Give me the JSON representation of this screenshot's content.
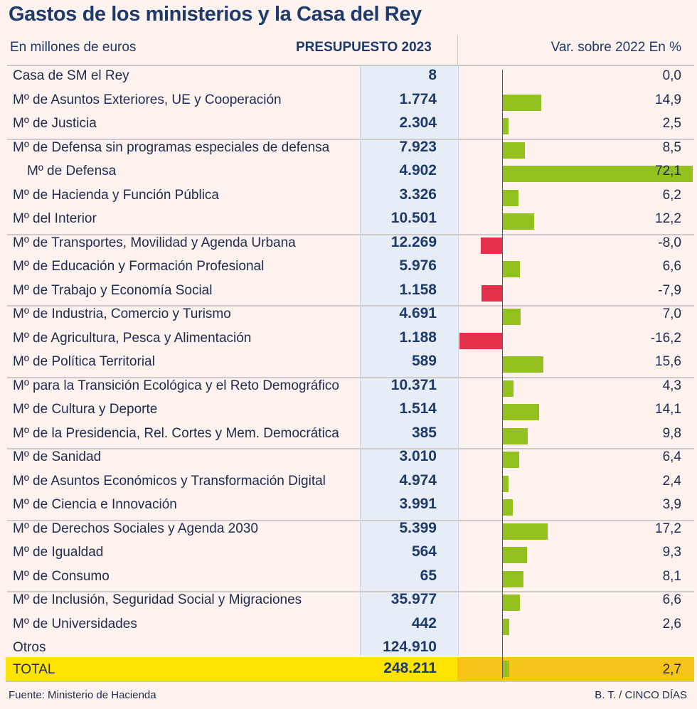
{
  "title": "Gastos de los ministerios y la Casa del Rey",
  "header": {
    "unit_label": "En millones de euros",
    "budget_label": "PRESUPUESTO 2023",
    "variation_label": "Var. sobre 2022 En %"
  },
  "chart_data": {
    "type": "bar",
    "title": "Gastos de los ministerios y la Casa del Rey",
    "xlabel": "Var. sobre 2022 En %",
    "ylabel": "",
    "xlim": [
      -20,
      45
    ],
    "rows": [
      {
        "label": "Casa de SM el Rey",
        "budget": "8",
        "var": 0.0,
        "var_text": "0,0"
      },
      {
        "label": "Mº de Asuntos Exteriores, UE y Cooperación",
        "budget": "1.774",
        "var": 14.9,
        "var_text": "14,9"
      },
      {
        "label": "Mº de Justicia",
        "budget": "2.304",
        "var": 2.5,
        "var_text": "2,5"
      },
      {
        "label": "Mº de Defensa sin programas especiales de defensa",
        "budget": "7.923",
        "var": 8.5,
        "var_text": "8,5"
      },
      {
        "label": "Mº de Defensa",
        "budget": "4.902",
        "var": 72.1,
        "var_text": "72,1",
        "indent": true
      },
      {
        "label": "Mº de Hacienda y Función Pública",
        "budget": "3.326",
        "var": 6.2,
        "var_text": "6,2"
      },
      {
        "label": "Mº del Interior",
        "budget": "10.501",
        "var": 12.2,
        "var_text": "12,2"
      },
      {
        "label": "Mº de Transportes, Movilidad y Agenda Urbana",
        "budget": "12.269",
        "var": -8.0,
        "var_text": "-8,0"
      },
      {
        "label": "Mº de Educación y Formación Profesional",
        "budget": "5.976",
        "var": 6.6,
        "var_text": "6,6"
      },
      {
        "label": "Mº de Trabajo y Economía Social",
        "budget": "1.158",
        "var": -7.9,
        "var_text": "-7,9"
      },
      {
        "label": "Mº de Industria, Comercio y Turismo",
        "budget": "4.691",
        "var": 7.0,
        "var_text": "7,0"
      },
      {
        "label": "Mº de Agricultura, Pesca y Alimentación",
        "budget": "1.188",
        "var": -16.2,
        "var_text": "-16,2"
      },
      {
        "label": "Mº de Política Territorial",
        "budget": "589",
        "var": 15.6,
        "var_text": "15,6"
      },
      {
        "label": "Mº para la Transición Ecológica y el Reto Demográfico",
        "budget": "10.371",
        "var": 4.3,
        "var_text": "4,3"
      },
      {
        "label": "Mº de Cultura y Deporte",
        "budget": "1.514",
        "var": 14.1,
        "var_text": "14,1"
      },
      {
        "label": "Mº de la Presidencia, Rel. Cortes y Mem. Democrática",
        "budget": "385",
        "var": 9.8,
        "var_text": "9,8"
      },
      {
        "label": "Mº de Sanidad",
        "budget": "3.010",
        "var": 6.4,
        "var_text": "6,4"
      },
      {
        "label": "Mº de Asuntos Económicos y Transformación Digital",
        "budget": "4.974",
        "var": 2.4,
        "var_text": "2,4"
      },
      {
        "label": "Mº de Ciencia e Innovación",
        "budget": "3.991",
        "var": 3.9,
        "var_text": "3,9"
      },
      {
        "label": "Mº de Derechos Sociales y Agenda 2030",
        "budget": "5.399",
        "var": 17.2,
        "var_text": "17,2"
      },
      {
        "label": "Mº de Igualdad",
        "budget": "564",
        "var": 9.3,
        "var_text": "9,3"
      },
      {
        "label": "Mº de Consumo",
        "budget": "65",
        "var": 8.1,
        "var_text": "8,1"
      },
      {
        "label": "Mº de Inclusión, Seguridad Social y Migraciones",
        "budget": "35.977",
        "var": 6.6,
        "var_text": "6,6"
      },
      {
        "label": "Mº de Universidades",
        "budget": "442",
        "var": 2.6,
        "var_text": "2,6"
      },
      {
        "label": "Otros",
        "budget": "124.910",
        "var": null,
        "var_text": ""
      }
    ],
    "total": {
      "label": "TOTAL",
      "budget": "248.211",
      "var": 2.7,
      "var_text": "2,7"
    }
  },
  "footer": {
    "source": "Fuente: Ministerio de Hacienda",
    "credit": "B. T. / CINCO DÍAS"
  },
  "colors": {
    "positive": "#94c11f",
    "negative": "#e3304b",
    "total_band": "#ffe400",
    "total_band_right": "#f7c418"
  }
}
